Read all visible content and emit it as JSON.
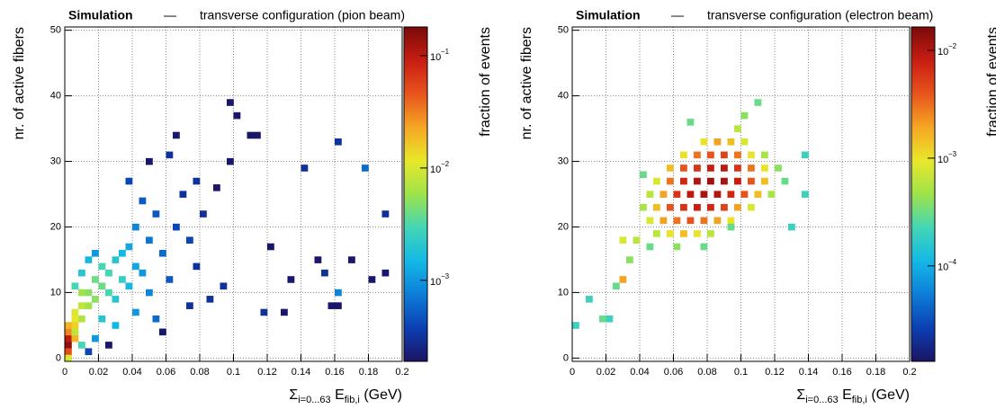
{
  "chart_data": [
    {
      "type": "heatmap",
      "title_tag": "Simulation",
      "title_separator": "—",
      "title": "transverse configuration (pion beam)",
      "xlabel": [
        "Σ",
        "i=0...63",
        " E",
        "fib,i",
        " (GeV)"
      ],
      "ylabel": "nr. of active fibers",
      "zlabel": "fraction of events",
      "xlim": [
        0,
        0.2
      ],
      "ylim": [
        -0.5,
        50.5
      ],
      "zlim": [
        0.00019,
        0.18
      ],
      "zscale": "log",
      "grid": true,
      "xticks": [
        0,
        0.02,
        0.04,
        0.06,
        0.08,
        0.1,
        0.12,
        0.14,
        0.16,
        0.18,
        0.2
      ],
      "yticks": [
        0,
        10,
        20,
        30,
        40,
        50
      ],
      "zticks": [
        {
          "value": 0.1,
          "label": "10",
          "exponent": "−1"
        },
        {
          "value": 0.01,
          "label": "10",
          "exponent": "−2"
        },
        {
          "value": 0.001,
          "label": "10",
          "exponent": "−3"
        }
      ],
      "palette": [
        "#1b1464",
        "#0b3fb3",
        "#0d7ed8",
        "#14b8e6",
        "#43d6b5",
        "#9ee34a",
        "#e8e82a",
        "#f5a623",
        "#e8541c",
        "#c81d12",
        "#7a0a0a"
      ],
      "x": [
        0.002,
        0.002,
        0.002,
        0.002,
        0.002,
        0.002,
        0.006,
        0.006,
        0.006,
        0.006,
        0.006,
        0.01,
        0.01,
        0.01,
        0.014,
        0.014,
        0.018,
        0.018,
        0.022,
        0.022,
        0.026,
        0.026,
        0.03,
        0.03,
        0.034,
        0.034,
        0.038,
        0.038,
        0.042,
        0.042,
        0.046,
        0.05,
        0.05,
        0.054,
        0.058,
        0.062,
        0.066,
        0.07,
        0.074,
        0.078,
        0.082,
        0.086,
        0.09,
        0.094,
        0.098,
        0.102,
        0.098,
        0.11,
        0.114,
        0.118,
        0.122,
        0.13,
        0.134,
        0.142,
        0.15,
        0.154,
        0.162,
        0.158,
        0.162,
        0.17,
        0.178,
        0.182,
        0.19,
        0.19,
        0.162,
        0.058,
        0.026,
        0.074,
        0.078,
        0.062,
        0.038,
        0.046,
        0.066,
        0.05,
        0.014,
        0.018,
        0.01,
        0.006,
        0.03,
        0.042,
        0.054,
        0.022,
        0.018,
        0.014,
        0.01
      ],
      "y": [
        2,
        3,
        1,
        4,
        5,
        0,
        3,
        5,
        7,
        6,
        4,
        8,
        6,
        10,
        10,
        8,
        12,
        9,
        11,
        14,
        10,
        13,
        15,
        9,
        12,
        16,
        11,
        17,
        14,
        20,
        13,
        18,
        10,
        22,
        16,
        12,
        20,
        25,
        18,
        14,
        22,
        9,
        26,
        11,
        39,
        37,
        30,
        34,
        34,
        7,
        17,
        7,
        12,
        29,
        15,
        13,
        33,
        8,
        8,
        15,
        29,
        12,
        22,
        13,
        10,
        4,
        2,
        8,
        27,
        31,
        27,
        24,
        34,
        30,
        15,
        16,
        13,
        11,
        5,
        7,
        6,
        6,
        3,
        1,
        2
      ],
      "values": [
        0.15,
        0.1,
        0.05,
        0.03,
        0.02,
        0.01,
        0.02,
        0.015,
        0.01,
        0.012,
        0.008,
        0.008,
        0.007,
        0.006,
        0.005,
        0.006,
        0.004,
        0.005,
        0.004,
        0.003,
        0.003,
        0.003,
        0.002,
        0.002,
        0.0025,
        0.0015,
        0.0015,
        0.0012,
        0.0012,
        0.0008,
        0.001,
        0.0007,
        0.0008,
        0.0005,
        0.0006,
        0.0005,
        0.0004,
        0.0003,
        0.0004,
        0.0003,
        0.0003,
        0.0003,
        0.0002,
        0.0003,
        0.0002,
        0.0002,
        0.0002,
        0.0002,
        0.0002,
        0.0003,
        0.0002,
        0.0002,
        0.0002,
        0.0003,
        0.0002,
        0.0003,
        0.0003,
        0.0002,
        0.0002,
        0.0002,
        0.0006,
        0.0002,
        0.0003,
        0.0002,
        0.0008,
        0.0002,
        0.0002,
        0.0003,
        0.0003,
        0.0003,
        0.0004,
        0.0005,
        0.0002,
        0.0002,
        0.0015,
        0.001,
        0.002,
        0.003,
        0.0015,
        0.001,
        0.0006,
        0.002,
        0.001,
        0.0004,
        0.003
      ]
    },
    {
      "type": "heatmap",
      "title_tag": "Simulation",
      "title_separator": "—",
      "title": "transverse configuration (electron beam)",
      "xlabel": [
        "Σ",
        "i=0...63",
        " E",
        "fib,i",
        " (GeV)"
      ],
      "ylabel": "nr. of active fibers",
      "zlabel": "fraction of events",
      "xlim": [
        0,
        0.2
      ],
      "ylim": [
        -0.5,
        50.5
      ],
      "zlim": [
        1.3e-05,
        0.0165
      ],
      "zscale": "log",
      "grid": true,
      "xticks": [
        0,
        0.02,
        0.04,
        0.06,
        0.08,
        0.1,
        0.12,
        0.14,
        0.16,
        0.18,
        0.2
      ],
      "yticks": [
        0,
        10,
        20,
        30,
        40,
        50
      ],
      "zticks": [
        {
          "value": 0.01,
          "label": "10",
          "exponent": "−2"
        },
        {
          "value": 0.001,
          "label": "10",
          "exponent": "−3"
        },
        {
          "value": 0.0001,
          "label": "10",
          "exponent": "−4"
        }
      ],
      "palette": [
        "#1b1464",
        "#0b3fb3",
        "#0d7ed8",
        "#14b8e6",
        "#43d6b5",
        "#9ee34a",
        "#e8e82a",
        "#f5a623",
        "#e8541c",
        "#c81d12",
        "#7a0a0a"
      ],
      "x": [
        0.078,
        0.086,
        0.094,
        0.102,
        0.066,
        0.074,
        0.082,
        0.09,
        0.098,
        0.106,
        0.114,
        0.058,
        0.066,
        0.074,
        0.082,
        0.09,
        0.098,
        0.106,
        0.114,
        0.122,
        0.05,
        0.058,
        0.066,
        0.074,
        0.082,
        0.09,
        0.098,
        0.106,
        0.114,
        0.126,
        0.046,
        0.054,
        0.062,
        0.07,
        0.078,
        0.086,
        0.094,
        0.102,
        0.11,
        0.118,
        0.042,
        0.05,
        0.058,
        0.066,
        0.074,
        0.082,
        0.09,
        0.098,
        0.106,
        0.046,
        0.054,
        0.062,
        0.07,
        0.078,
        0.086,
        0.094,
        0.05,
        0.058,
        0.066,
        0.074,
        0.082,
        0.046,
        0.062,
        0.078,
        0.002,
        0.01,
        0.018,
        0.022,
        0.026,
        0.03,
        0.034,
        0.038,
        0.03,
        0.11,
        0.138,
        0.13,
        0.102,
        0.098,
        0.07,
        0.042,
        0.138,
        0.094
      ],
      "y": [
        33,
        33,
        33,
        33,
        31,
        31,
        31,
        31,
        31,
        31,
        31,
        29,
        29,
        29,
        29,
        29,
        29,
        29,
        29,
        29,
        27,
        27,
        27,
        27,
        27,
        27,
        27,
        27,
        27,
        27,
        25,
        25,
        25,
        25,
        25,
        25,
        25,
        25,
        25,
        25,
        23,
        23,
        23,
        23,
        23,
        23,
        23,
        23,
        23,
        21,
        21,
        21,
        21,
        21,
        21,
        21,
        19,
        19,
        19,
        19,
        19,
        17,
        17,
        17,
        5,
        9,
        6,
        6,
        11,
        12,
        15,
        18,
        18,
        39,
        31,
        20,
        37,
        35,
        36,
        28,
        25,
        20
      ],
      "values": [
        0.001,
        0.002,
        0.0015,
        0.0008,
        0.001,
        0.003,
        0.004,
        0.005,
        0.003,
        0.001,
        0.0005,
        0.0015,
        0.004,
        0.006,
        0.008,
        0.009,
        0.006,
        0.003,
        0.001,
        0.0004,
        0.0008,
        0.003,
        0.007,
        0.01,
        0.012,
        0.011,
        0.008,
        0.004,
        0.0015,
        0.0003,
        0.0006,
        0.002,
        0.006,
        0.009,
        0.011,
        0.01,
        0.007,
        0.004,
        0.0015,
        0.0005,
        0.0005,
        0.0015,
        0.004,
        0.006,
        0.008,
        0.007,
        0.005,
        0.002,
        0.0008,
        0.0008,
        0.002,
        0.003,
        0.004,
        0.003,
        0.002,
        0.001,
        0.0006,
        0.001,
        0.0015,
        0.001,
        0.0006,
        0.0003,
        0.0004,
        0.0003,
        0.0002,
        0.0002,
        0.0003,
        0.0002,
        0.0003,
        0.002,
        0.0004,
        0.0006,
        0.0008,
        0.0003,
        0.0002,
        0.0002,
        0.0004,
        0.0006,
        0.0003,
        0.0003,
        0.0002,
        0.0003
      ]
    }
  ]
}
